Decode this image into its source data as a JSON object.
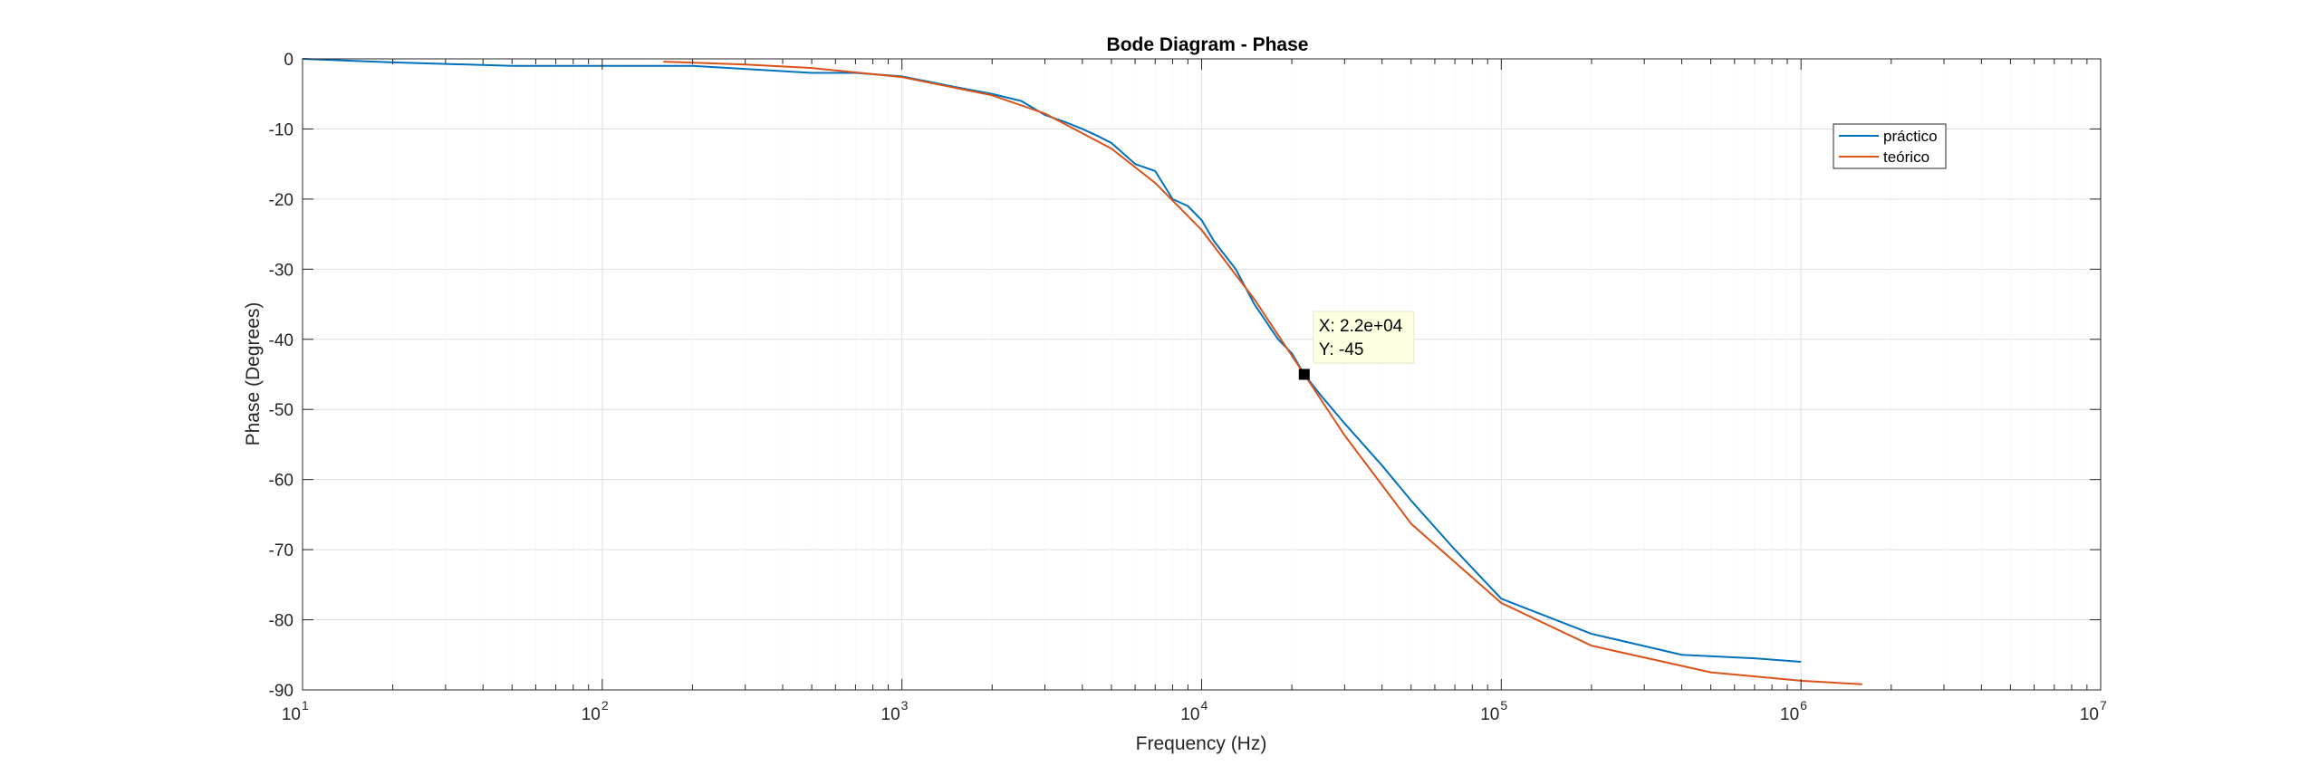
{
  "chart_data": {
    "type": "line",
    "title": "Bode Diagram - Phase",
    "xlabel": "Frequency (Hz)",
    "ylabel": "Phase (Degrees)",
    "xscale": "log",
    "xlim": [
      10,
      10000000
    ],
    "ylim": [
      -90,
      0
    ],
    "x_ticks": [
      {
        "base": "10",
        "exp": "1"
      },
      {
        "base": "10",
        "exp": "2"
      },
      {
        "base": "10",
        "exp": "3"
      },
      {
        "base": "10",
        "exp": "4"
      },
      {
        "base": "10",
        "exp": "5"
      },
      {
        "base": "10",
        "exp": "6"
      },
      {
        "base": "10",
        "exp": "7"
      }
    ],
    "y_ticks": [
      "0",
      "-10",
      "-20",
      "-30",
      "-40",
      "-50",
      "-60",
      "-70",
      "-80",
      "-90"
    ],
    "grid": true,
    "legend_position": "top-right",
    "series": [
      {
        "name": "práctico",
        "color": "#0072BD",
        "x": [
          10,
          20,
          50,
          100,
          200,
          500,
          700,
          1000,
          1500,
          2000,
          2500,
          3000,
          3500,
          4000,
          4500,
          5000,
          6000,
          7000,
          8000,
          9000,
          10000,
          11000,
          13000,
          15000,
          18000,
          20000,
          22000,
          25000,
          30000,
          40000,
          50000,
          70000,
          100000,
          200000,
          400000,
          700000,
          1000000
        ],
        "y": [
          0,
          -0.5,
          -1,
          -1,
          -1,
          -2,
          -2,
          -2.5,
          -4,
          -5,
          -6,
          -8,
          -9,
          -10,
          -11,
          -12,
          -15,
          -16,
          -20,
          -21,
          -23,
          -26,
          -30,
          -35,
          -40,
          -42,
          -45,
          -48,
          -52,
          -58,
          -63,
          -70,
          -77,
          -82,
          -85,
          -85.5,
          -86
        ]
      },
      {
        "name": "teórico",
        "color": "#D95319",
        "x": [
          160,
          300,
          500,
          1000,
          2000,
          3000,
          5000,
          7000,
          10000,
          15000,
          22000,
          30000,
          50000,
          100000,
          200000,
          500000,
          1000000,
          1600000
        ],
        "y": [
          -0.4,
          -0.8,
          -1.3,
          -2.6,
          -5.2,
          -7.8,
          -12.8,
          -17.7,
          -24.4,
          -34.3,
          -45,
          -53.7,
          -66.3,
          -77.6,
          -83.7,
          -87.5,
          -88.7,
          -89.2
        ]
      }
    ],
    "annotation": {
      "x": 22000,
      "y": -45,
      "label_x": "X: 2.2e+04",
      "label_y": "Y: -45"
    }
  }
}
